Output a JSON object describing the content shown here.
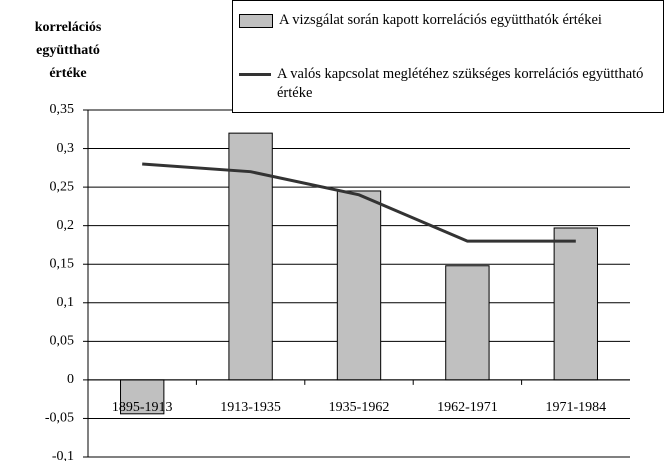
{
  "chart_data": {
    "type": "bar",
    "y_label": [
      "korrelációs",
      "együttható",
      "értéke"
    ],
    "categories": [
      "1895-1913",
      "1913-1935",
      "1935-1962",
      "1962-1971",
      "1971-1984"
    ],
    "series": [
      {
        "name": "A vizsgálat során kapott korrelációs együtthatók értékei",
        "type": "bar",
        "color": "#c0c0c0",
        "values": [
          -0.044,
          0.32,
          0.245,
          0.148,
          0.197
        ]
      },
      {
        "name": "A valós kapcsolat meglétéhez szükséges korrelációs együttható értéke",
        "type": "line",
        "color": "#333333",
        "values": [
          0.28,
          0.27,
          0.24,
          0.18,
          0.18
        ]
      }
    ],
    "ylim": [
      -0.1,
      0.35
    ],
    "yticks": [
      {
        "value": -0.1,
        "label": "-0,1"
      },
      {
        "value": -0.05,
        "label": "-0,05"
      },
      0,
      {
        "value": 0.05,
        "label": "0,05"
      },
      {
        "value": 0.1,
        "label": "0,1"
      },
      {
        "value": 0.15,
        "label": "0,15"
      },
      {
        "value": 0.2,
        "label": "0,2"
      },
      {
        "value": 0.25,
        "label": "0,25"
      },
      {
        "value": 0.3,
        "label": "0,3"
      },
      {
        "value": 0.35,
        "label": "0,35"
      }
    ],
    "grid": true
  }
}
